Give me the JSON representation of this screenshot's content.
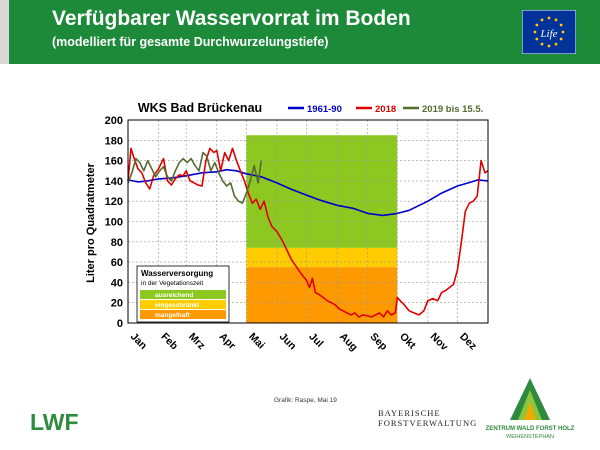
{
  "header": {
    "title": "Verfügbarer Wasservorrat im Boden",
    "subtitle": "(modelliert für gesamte Durchwurzelungstiefe)",
    "eu_logo_text": "Life"
  },
  "colors": {
    "header_green": "#1c8a38",
    "series_1961_90": "#0000cc",
    "series_2018": "#e00000",
    "series_2019": "#556b2f",
    "band_ausreichend": "#8cc820",
    "band_eingeschraenkt": "#ffcc00",
    "band_mangelhaft": "#ff9900"
  },
  "chart_data": {
    "type": "line",
    "title": "WKS Bad Brückenau",
    "xlabel": "",
    "ylabel": "Liter pro Quadratmeter",
    "ylim": [
      0,
      200
    ],
    "yticks": [
      0,
      20,
      40,
      60,
      80,
      100,
      120,
      140,
      160,
      180,
      200
    ],
    "xlim": [
      0,
      365
    ],
    "month_ticks": [
      {
        "label": "Jan",
        "day": 0
      },
      {
        "label": "Feb",
        "day": 31
      },
      {
        "label": "Mrz",
        "day": 59
      },
      {
        "label": "Apr",
        "day": 90
      },
      {
        "label": "Mai",
        "day": 120
      },
      {
        "label": "Jun",
        "day": 151
      },
      {
        "label": "Jul",
        "day": 181
      },
      {
        "label": "Aug",
        "day": 212
      },
      {
        "label": "Sep",
        "day": 243
      },
      {
        "label": "Okt",
        "day": 273
      },
      {
        "label": "Nov",
        "day": 304
      },
      {
        "label": "Dez",
        "day": 334
      }
    ],
    "grid": true,
    "legend_position": "top",
    "vegetation_period": {
      "start_day": 120,
      "end_day": 273,
      "bands": [
        {
          "label": "ausreichend",
          "from": 74,
          "to": 185
        },
        {
          "label": "eingeschränkt",
          "from": 55,
          "to": 74
        },
        {
          "label": "mangelhaft",
          "from": 0,
          "to": 55
        }
      ]
    },
    "legend_box": {
      "title": "Wasserversorgung",
      "subtitle": "in der Vegetationszeit",
      "items": [
        "ausreichend",
        "eingeschränkt",
        "mangelhaft"
      ]
    },
    "series": [
      {
        "name": "1961-90",
        "x": [
          0,
          10,
          20,
          31,
          45,
          59,
          75,
          90,
          100,
          110,
          120,
          135,
          151,
          165,
          181,
          195,
          212,
          228,
          243,
          258,
          273,
          285,
          304,
          318,
          334,
          345,
          355,
          365
        ],
        "values": [
          141,
          139,
          140,
          142,
          143,
          145,
          148,
          149,
          151,
          150,
          147,
          144,
          138,
          132,
          126,
          121,
          116,
          113,
          108,
          106,
          108,
          111,
          120,
          128,
          135,
          138,
          141,
          140
        ]
      },
      {
        "name": "2018",
        "x": [
          0,
          3,
          6,
          10,
          14,
          18,
          22,
          26,
          31,
          36,
          40,
          44,
          48,
          52,
          56,
          59,
          63,
          67,
          71,
          75,
          79,
          83,
          87,
          90,
          94,
          98,
          102,
          106,
          110,
          114,
          118,
          122,
          126,
          130,
          134,
          138,
          142,
          146,
          151,
          156,
          161,
          166,
          171,
          176,
          181,
          184,
          187,
          190,
          194,
          198,
          202,
          206,
          210,
          214,
          218,
          222,
          226,
          230,
          234,
          238,
          243,
          247,
          251,
          255,
          259,
          263,
          267,
          271,
          273,
          276,
          280,
          285,
          290,
          295,
          300,
          304,
          309,
          314,
          318,
          322,
          326,
          330,
          334,
          338,
          342,
          346,
          350,
          354,
          358,
          362,
          365
        ],
        "values": [
          140,
          172,
          163,
          152,
          148,
          138,
          132,
          145,
          152,
          162,
          140,
          136,
          142,
          146,
          145,
          150,
          140,
          138,
          136,
          135,
          160,
          172,
          168,
          170,
          150,
          168,
          160,
          172,
          160,
          150,
          140,
          128,
          118,
          122,
          112,
          120,
          104,
          95,
          90,
          82,
          72,
          62,
          55,
          48,
          42,
          35,
          44,
          30,
          28,
          25,
          22,
          20,
          18,
          14,
          12,
          10,
          8,
          10,
          6,
          8,
          7,
          6,
          8,
          10,
          6,
          12,
          8,
          10,
          25,
          22,
          18,
          12,
          10,
          8,
          12,
          22,
          24,
          22,
          30,
          32,
          35,
          38,
          52,
          80,
          110,
          118,
          120,
          125,
          160,
          148,
          150
        ]
      },
      {
        "name": "2019 bis 15.5.",
        "x": [
          0,
          4,
          8,
          12,
          16,
          20,
          24,
          28,
          32,
          36,
          40,
          44,
          48,
          52,
          56,
          60,
          64,
          68,
          72,
          76,
          80,
          84,
          88,
          92,
          96,
          100,
          104,
          108,
          112,
          116,
          120,
          124,
          128,
          132,
          135
        ],
        "values": [
          138,
          148,
          162,
          158,
          150,
          160,
          152,
          144,
          150,
          154,
          144,
          140,
          150,
          158,
          162,
          158,
          162,
          155,
          150,
          168,
          164,
          150,
          158,
          148,
          140,
          135,
          138,
          125,
          120,
          118,
          128,
          140,
          155,
          138,
          160
        ]
      }
    ]
  },
  "footer": {
    "credit": "Grafik: Raspe, Mai 19",
    "lwf_logo": "LWF",
    "bfv_line1": "BAYERISCHE",
    "bfv_line2": "FORSTVERWALTUNG",
    "zwfh_line1": "ZENTRUM WALD FORST HOLZ",
    "zwfh_line2": "WEIHENSTEPHAN"
  }
}
